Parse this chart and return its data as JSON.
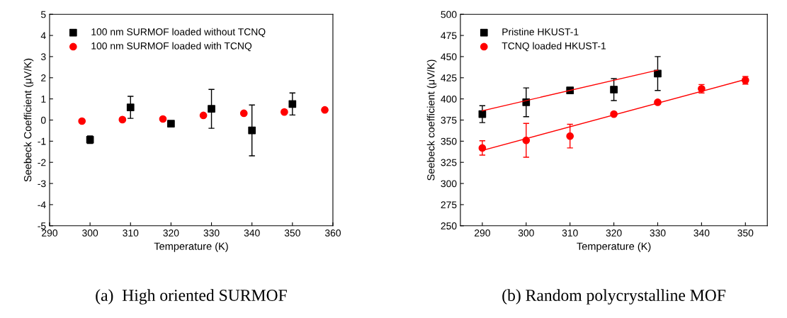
{
  "chart_data": [
    {
      "type": "scatter",
      "xlabel": "Temperature (K)",
      "ylabel": "Seebeck Coefficient (μV/K)",
      "xlim": [
        290,
        360
      ],
      "xticks": [
        290,
        300,
        310,
        320,
        330,
        340,
        350,
        360
      ],
      "ylim": [
        -5,
        5
      ],
      "yticks": [
        -5,
        -4,
        -3,
        -2,
        -1,
        0,
        1,
        2,
        3,
        4,
        5
      ],
      "legend": "top left",
      "grid": false,
      "annotations": [
        "(a)  High oriented SURMOF"
      ],
      "series": [
        {
          "name": "100 nm SURMOF loaded without TCNQ",
          "color": "#000000",
          "marker": "square",
          "x": [
            300,
            310,
            320,
            330,
            340,
            350
          ],
          "values": [
            -0.93,
            0.6,
            -0.17,
            0.53,
            -0.49,
            0.76
          ],
          "errors": [
            0.18,
            0.52,
            0.12,
            0.92,
            1.2,
            0.52
          ]
        },
        {
          "name": "100 nm SURMOF loaded with TCNQ",
          "color": "#ff0000",
          "marker": "circle",
          "x": [
            298,
            308,
            318,
            328,
            338,
            348,
            358
          ],
          "values": [
            -0.05,
            0.02,
            0.05,
            0.22,
            0.32,
            0.38,
            0.48
          ]
        }
      ]
    },
    {
      "type": "scatter",
      "xlabel": "Temperature (K)",
      "ylabel": "Seebeck coefficient (μV/K)",
      "xlim": [
        285,
        355
      ],
      "xticks": [
        290,
        300,
        310,
        320,
        330,
        340,
        350
      ],
      "ylim": [
        250,
        500
      ],
      "yticks": [
        250,
        275,
        300,
        325,
        350,
        375,
        400,
        425,
        450,
        475,
        500
      ],
      "legend": "top left",
      "grid": false,
      "annotations": [
        "(b) Random polycrystalline MOF"
      ],
      "series": [
        {
          "name": "Pristine HKUST-1",
          "color": "#000000",
          "marker": "square",
          "x": [
            290,
            300,
            310,
            320,
            330
          ],
          "values": [
            382,
            396,
            410,
            411,
            430
          ],
          "errors": [
            10,
            17,
            null,
            13,
            20
          ]
        },
        {
          "name": "TCNQ loaded HKUST-1",
          "color": "#ff0000",
          "marker": "circle",
          "x": [
            290,
            300,
            310,
            320,
            330,
            340,
            350
          ],
          "values": [
            342,
            351,
            356,
            382,
            396,
            412,
            422
          ],
          "errors": [
            8.5,
            20,
            14,
            null,
            null,
            5,
            4.5
          ]
        },
        {
          "type": "line",
          "color": "#ff0000",
          "x": [
            290,
            330
          ],
          "values": [
            386,
            434
          ]
        },
        {
          "type": "line",
          "color": "#ff0000",
          "x": [
            290,
            350
          ],
          "values": [
            339,
            423
          ]
        }
      ]
    }
  ]
}
